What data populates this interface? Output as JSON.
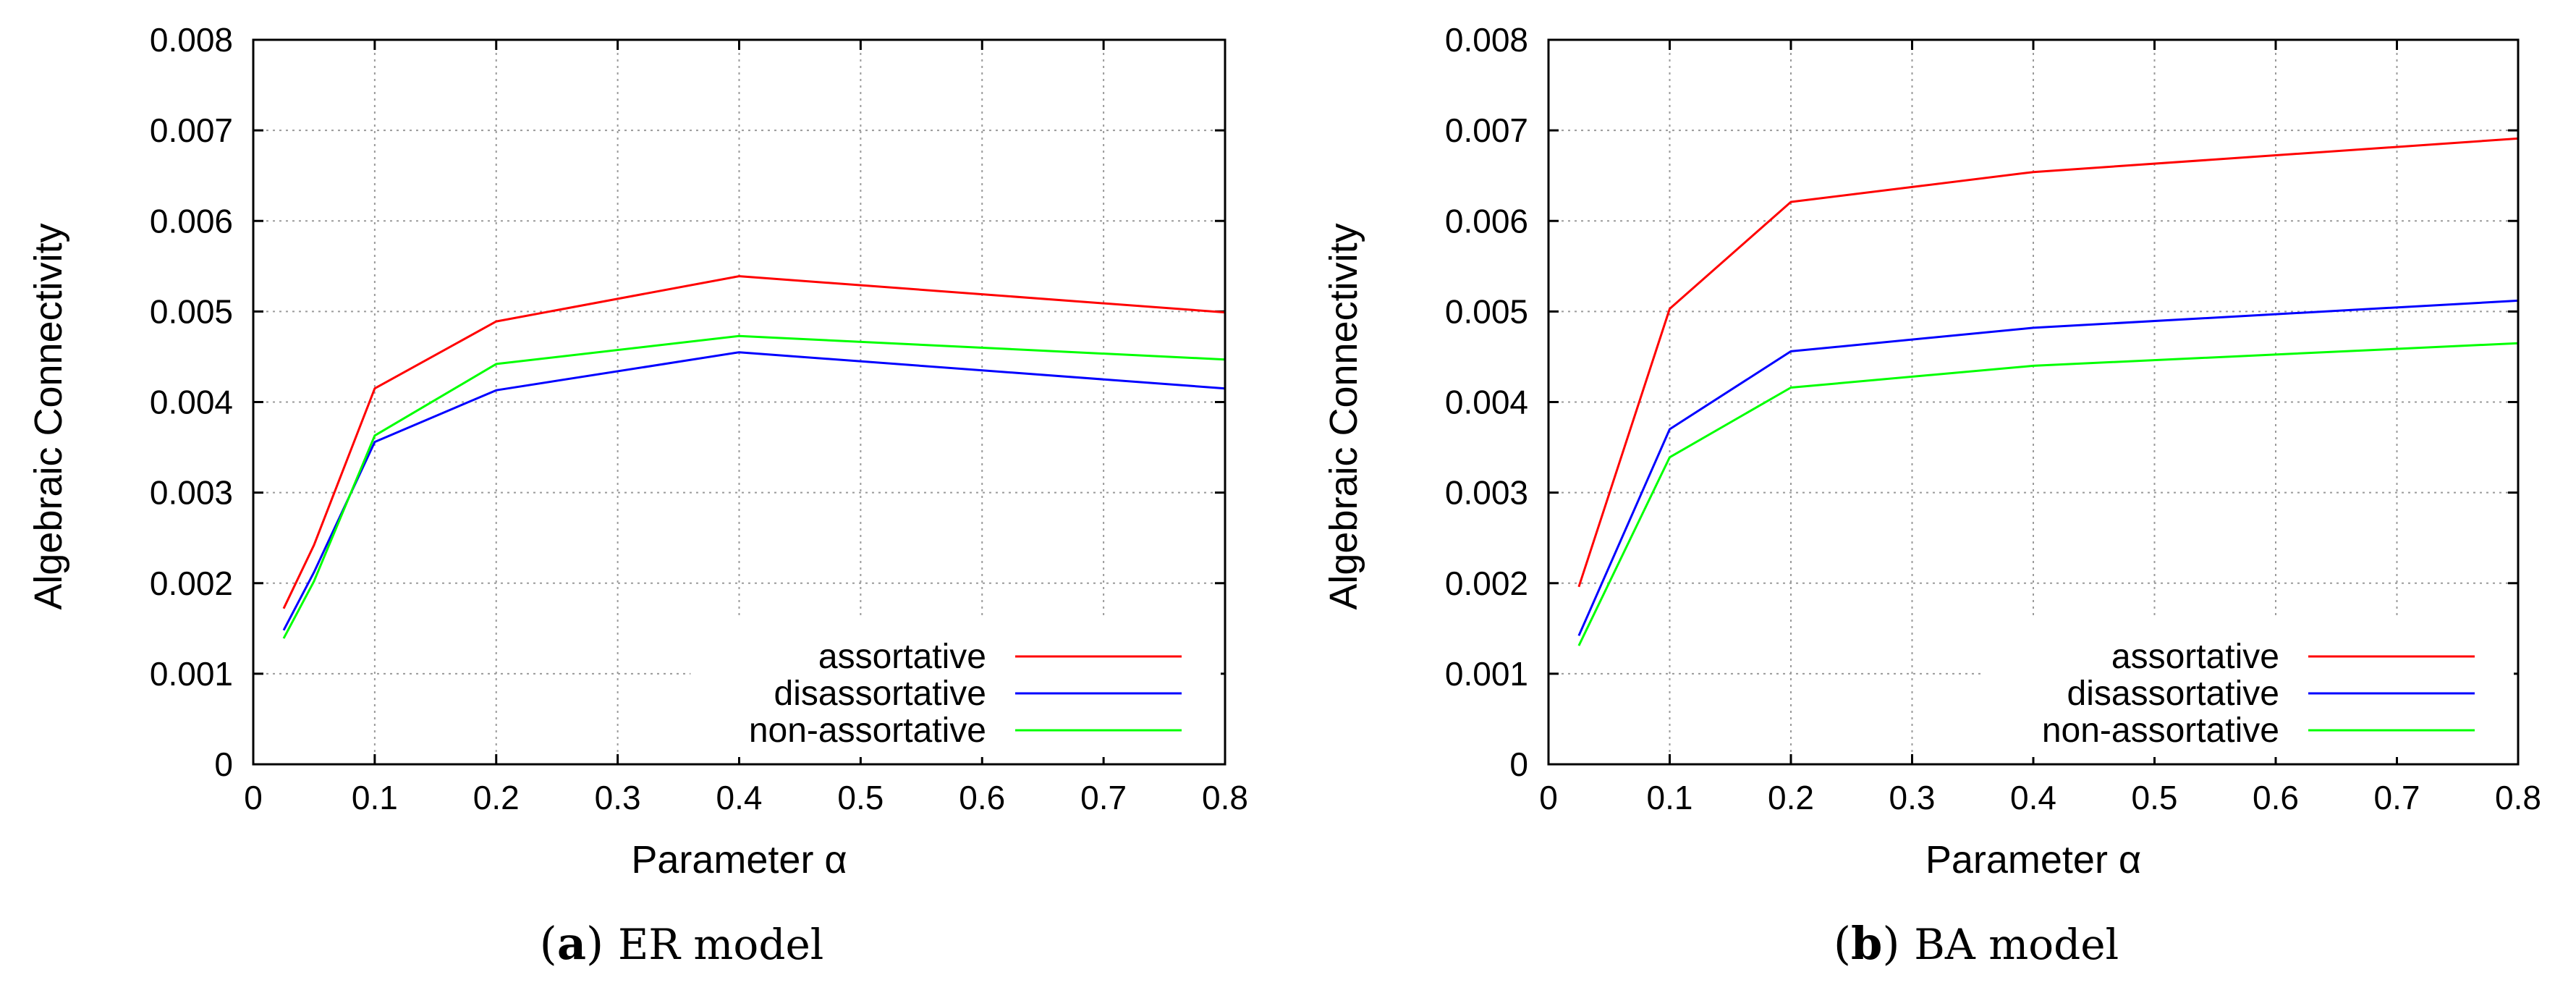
{
  "chart_data": [
    {
      "type": "line",
      "caption_label": "a",
      "caption_text": "ER model",
      "xlabel": "Parameter α",
      "ylabel": "Algebraic Connectivity",
      "xlim": [
        0,
        0.8
      ],
      "ylim": [
        0,
        0.008
      ],
      "xticks": [
        "0",
        "0.1",
        "0.2",
        "0.3",
        "0.4",
        "0.5",
        "0.6",
        "0.7",
        "0.8"
      ],
      "yticks": [
        "0",
        "0.001",
        "0.002",
        "0.003",
        "0.004",
        "0.005",
        "0.006",
        "0.007",
        "0.008"
      ],
      "grid": true,
      "legend_position": "bottom-right",
      "series": [
        {
          "name": "assortative",
          "color": "#ff0000",
          "x": [
            0.025,
            0.05,
            0.1,
            0.2,
            0.4,
            0.8
          ],
          "y": [
            0.00172,
            0.00242,
            0.00415,
            0.00489,
            0.00539,
            0.00499
          ]
        },
        {
          "name": "disassortative",
          "color": "#0000ff",
          "x": [
            0.025,
            0.05,
            0.1,
            0.2,
            0.4,
            0.8
          ],
          "y": [
            0.00148,
            0.00212,
            0.00356,
            0.00413,
            0.00455,
            0.00415
          ]
        },
        {
          "name": "non-assortative",
          "color": "#00ff00",
          "x": [
            0.025,
            0.05,
            0.1,
            0.2,
            0.4,
            0.8
          ],
          "y": [
            0.00139,
            0.00202,
            0.00363,
            0.00442,
            0.00473,
            0.00447
          ]
        }
      ]
    },
    {
      "type": "line",
      "caption_label": "b",
      "caption_text": "BA model",
      "xlabel": "Parameter α",
      "ylabel": "Algebraic Connectivity",
      "xlim": [
        0,
        0.8
      ],
      "ylim": [
        0,
        0.008
      ],
      "xticks": [
        "0",
        "0.1",
        "0.2",
        "0.3",
        "0.4",
        "0.5",
        "0.6",
        "0.7",
        "0.8"
      ],
      "yticks": [
        "0",
        "0.001",
        "0.002",
        "0.003",
        "0.004",
        "0.005",
        "0.006",
        "0.007",
        "0.008"
      ],
      "grid": true,
      "legend_position": "bottom-right",
      "series": [
        {
          "name": "assortative",
          "color": "#ff0000",
          "x": [
            0.025,
            0.1,
            0.2,
            0.4,
            0.8
          ],
          "y": [
            0.00196,
            0.00503,
            0.00621,
            0.00654,
            0.00691
          ]
        },
        {
          "name": "disassortative",
          "color": "#0000ff",
          "x": [
            0.025,
            0.1,
            0.2,
            0.4,
            0.8
          ],
          "y": [
            0.00142,
            0.0037,
            0.00456,
            0.00482,
            0.00512
          ]
        },
        {
          "name": "non-assortative",
          "color": "#00ff00",
          "x": [
            0.025,
            0.1,
            0.2,
            0.4,
            0.8
          ],
          "y": [
            0.00131,
            0.00339,
            0.00416,
            0.0044,
            0.00465
          ]
        }
      ]
    }
  ]
}
